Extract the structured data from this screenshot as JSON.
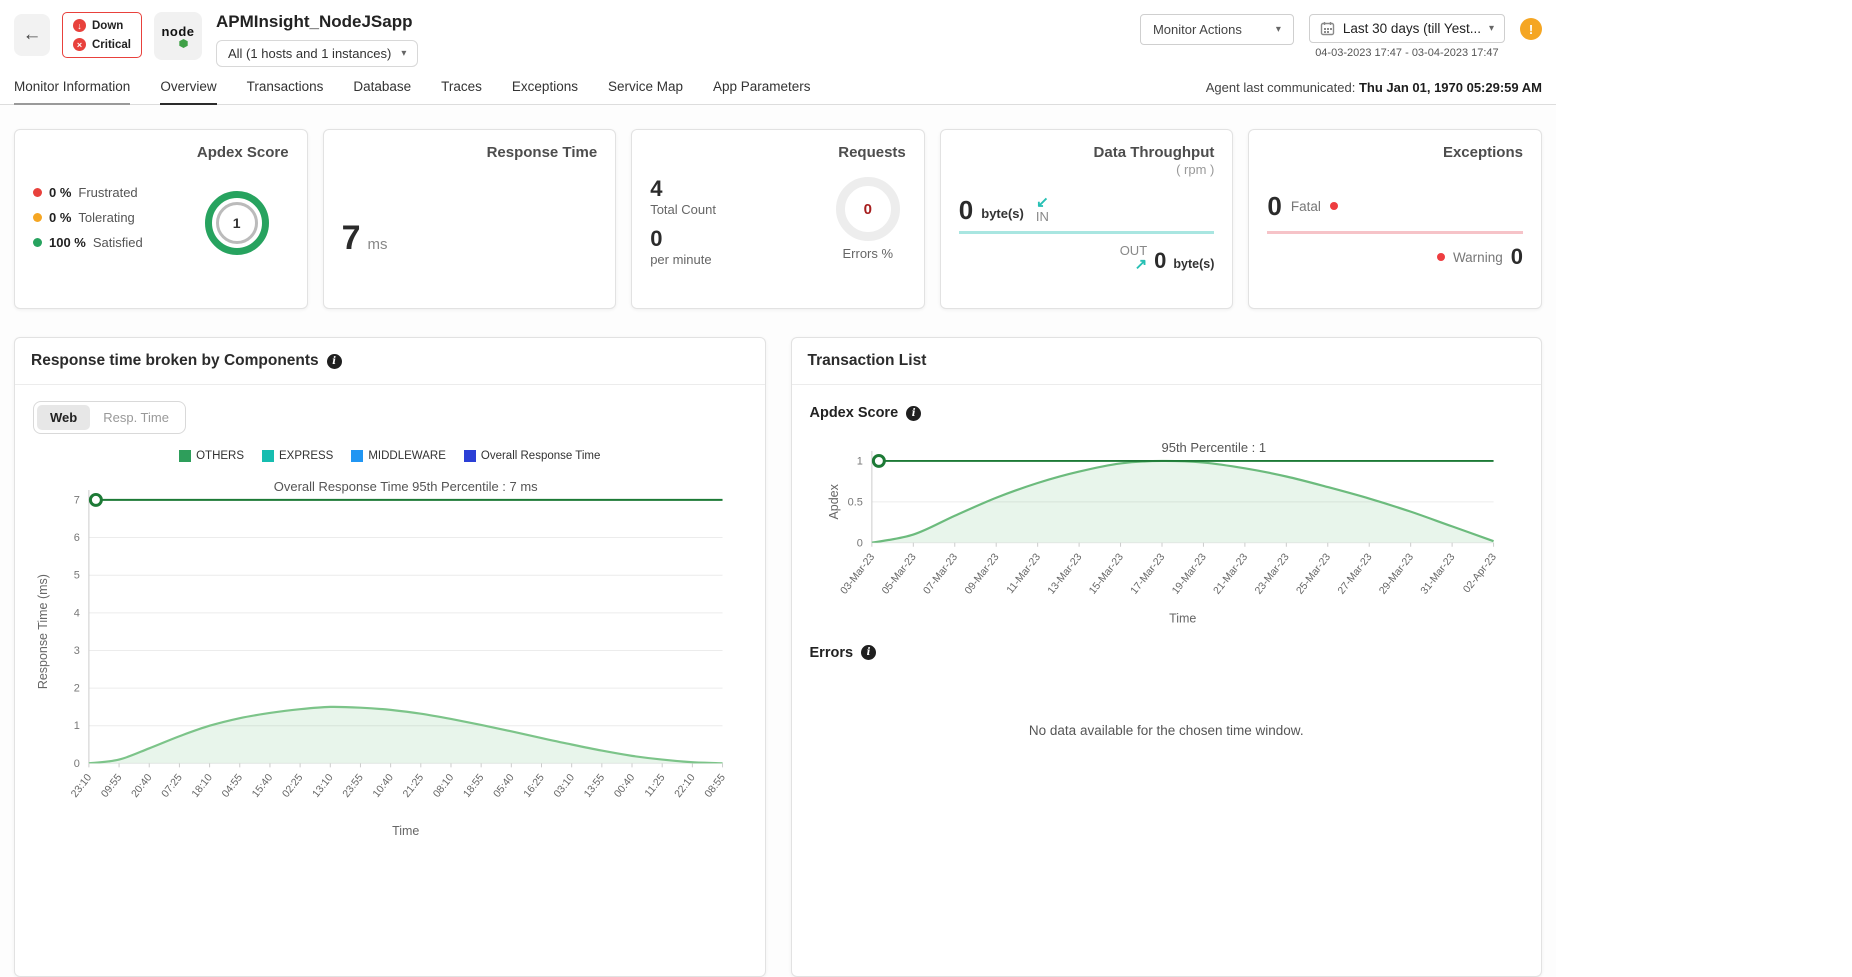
{
  "icons": {
    "caret": "▾",
    "info": "i",
    "down_arrow": "↓",
    "cross": "×",
    "back_arrow": "←",
    "alert": "!"
  },
  "header": {
    "status": {
      "down_label": "Down",
      "critical_label": "Critical"
    },
    "logo_text": "node",
    "app_title": "APMInsight_NodeJSapp",
    "instances_dropdown": "All (1 hosts and 1 instances)",
    "monitor_actions_label": "Monitor Actions",
    "date_range_label": "Last 30 days (till Yest...",
    "date_range_detail": "04-03-2023 17:47 - 03-04-2023 17:47"
  },
  "tab_bar": {
    "tabs": [
      {
        "label": "Monitor Information",
        "indicator": "gray"
      },
      {
        "label": "Overview",
        "indicator": "dark"
      },
      {
        "label": "Transactions"
      },
      {
        "label": "Database"
      },
      {
        "label": "Traces"
      },
      {
        "label": "Exceptions"
      },
      {
        "label": "Service Map"
      },
      {
        "label": "App Parameters"
      }
    ],
    "agent_label": "Agent last communicated:",
    "agent_value": "Thu Jan 01, 1970 05:29:59 AM"
  },
  "cards": {
    "apdex": {
      "title": "Apdex Score",
      "legend": [
        {
          "value": "0 %",
          "label": "Frustrated",
          "color": "#e8413c"
        },
        {
          "value": "0 %",
          "label": "Tolerating",
          "color": "#f5a623"
        },
        {
          "value": "100 %",
          "label": "Satisfied",
          "color": "#27a35f"
        }
      ],
      "score": "1",
      "ring_color": "#27a35f"
    },
    "response_time": {
      "title": "Response Time",
      "value": "7",
      "unit": "ms"
    },
    "requests": {
      "title": "Requests",
      "total_value": "4",
      "total_label": "Total Count",
      "rate_value": "0",
      "rate_label": "per minute",
      "errors_value": "0",
      "errors_label": "Errors %",
      "errors_color": "#a61d1d"
    },
    "throughput": {
      "title": "Data Throughput",
      "subtitle": "( rpm )",
      "in_value": "0",
      "in_unit": "byte(s)",
      "in_label": "IN",
      "in_arrow": "↙",
      "out_label": "OUT",
      "out_arrow": "↗",
      "out_value": "0",
      "out_unit": "byte(s)",
      "accent": "#27c0b4",
      "underline_color": "#a9e6e1"
    },
    "exceptions": {
      "title": "Exceptions",
      "fatal_value": "0",
      "fatal_label": "Fatal",
      "warning_label": "Warning",
      "warning_value": "0",
      "dot_color": "#ee3d40",
      "underline_color": "#f6c3c8"
    }
  },
  "left_panel": {
    "title": "Response time broken by Components",
    "toggle": {
      "options": [
        "Web",
        "Resp. Time"
      ],
      "active": "Web"
    },
    "legend": [
      {
        "label": "OTHERS",
        "color": "#2e9e5b"
      },
      {
        "label": "EXPRESS",
        "color": "#16bdb0"
      },
      {
        "label": "MIDDLEWARE",
        "color": "#2196f3"
      },
      {
        "label": "Overall Response Time",
        "color": "#2b3fd6"
      }
    ],
    "chart_data": {
      "type": "area",
      "categories": [
        "23:10",
        "09:55",
        "20:40",
        "07:25",
        "18:10",
        "04:55",
        "15:40",
        "02:25",
        "13:10",
        "23:55",
        "10:40",
        "21:25",
        "08:10",
        "18:55",
        "05:40",
        "16:25",
        "03:10",
        "13:55",
        "00:40",
        "11:25",
        "22:10",
        "08:55"
      ],
      "values": [
        0,
        0.1,
        0.4,
        0.72,
        1.0,
        1.2,
        1.34,
        1.44,
        1.5,
        1.48,
        1.42,
        1.32,
        1.18,
        1.02,
        0.85,
        0.67,
        0.5,
        0.34,
        0.2,
        0.1,
        0.03,
        0
      ],
      "percentile_value": 7,
      "percentile_label": "Overall Response Time 95th Percentile : 7 ms",
      "xlabel": "Time",
      "ylabel": "Response Time (ms)",
      "yticks": [
        0,
        1,
        2,
        3,
        4,
        5,
        6,
        7
      ],
      "ymax": 7,
      "line_color": "#1d7a36",
      "curve_color": "#7cc489",
      "fill_color": "rgba(76,175,104,0.13)"
    }
  },
  "right_panel": {
    "title": "Transaction List",
    "apdex_section_title": "Apdex Score",
    "chart_data": {
      "type": "area",
      "categories": [
        "03-Mar-23",
        "05-Mar-23",
        "07-Mar-23",
        "09-Mar-23",
        "11-Mar-23",
        "13-Mar-23",
        "15-Mar-23",
        "17-Mar-23",
        "19-Mar-23",
        "21-Mar-23",
        "23-Mar-23",
        "25-Mar-23",
        "27-Mar-23",
        "29-Mar-23",
        "31-Mar-23",
        "02-Apr-23"
      ],
      "values": [
        0,
        0.1,
        0.33,
        0.55,
        0.73,
        0.87,
        0.97,
        1.0,
        0.98,
        0.91,
        0.81,
        0.68,
        0.54,
        0.38,
        0.2,
        0.02
      ],
      "percentile_value": 1,
      "percentile_label": "95th Percentile : 1",
      "xlabel": "Time",
      "ylabel": "Apdex",
      "yticks": [
        0,
        0.5,
        1
      ],
      "ymax": 1,
      "line_color": "#1d7a36",
      "curve_color": "#6cbb7d",
      "fill_color": "rgba(76,175,104,0.13)"
    },
    "errors_section_title": "Errors",
    "no_data_message": "No data available for the chosen time window."
  }
}
